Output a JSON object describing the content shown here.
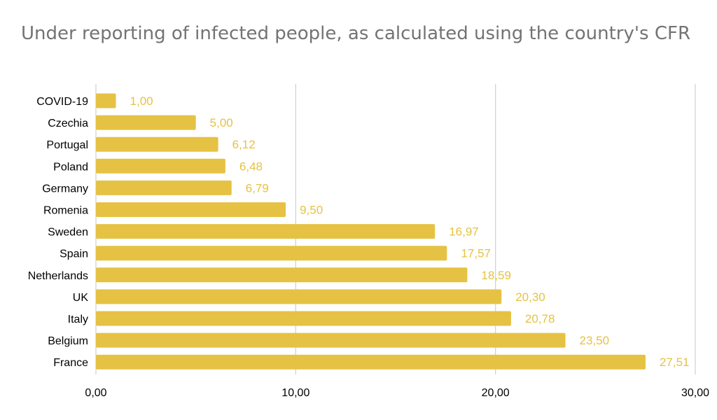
{
  "chart_data": {
    "type": "bar",
    "orientation": "horizontal",
    "title": "Under reporting of infected people, as calculated using the country's CFR",
    "categories": [
      "COVID-19",
      "Czechia",
      "Portugal",
      "Poland",
      "Germany",
      "Romenia",
      "Sweden",
      "Spain",
      "Netherlands",
      "UK",
      "Italy",
      "Belgium",
      "France"
    ],
    "values": [
      1.0,
      5.0,
      6.12,
      6.48,
      6.79,
      9.5,
      16.97,
      17.57,
      18.59,
      20.3,
      20.78,
      23.5,
      27.51
    ],
    "value_labels": [
      "1,00",
      "5,00",
      "6,12",
      "6,48",
      "6,79",
      "9,50",
      "16,97",
      "17,57",
      "18,59",
      "20,30",
      "20,78",
      "23,50",
      "27,51"
    ],
    "xticks": [
      0,
      10,
      20,
      30
    ],
    "xtick_labels": [
      "0,00",
      "10,00",
      "20,00",
      "30,00"
    ],
    "xlim": [
      0,
      30
    ],
    "xlabel": "",
    "ylabel": "",
    "grid": true,
    "legend": "none",
    "bar_color": "#E5C243",
    "label_color": "#E5C243",
    "grid_color": "#D0D0D0"
  }
}
